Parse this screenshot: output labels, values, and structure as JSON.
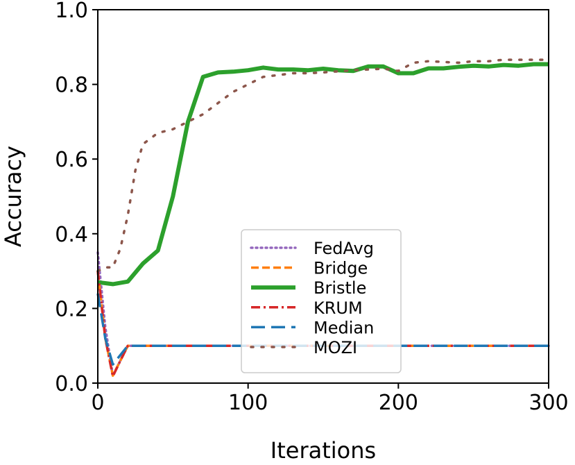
{
  "chart_data": {
    "type": "line",
    "xlabel": "Iterations",
    "ylabel": "Accuracy",
    "xlim": [
      0,
      300
    ],
    "ylim": [
      0.0,
      1.0
    ],
    "xticks": [
      0,
      100,
      200,
      300
    ],
    "xtick_labels": [
      "0",
      "100",
      "200",
      "300"
    ],
    "yticks": [
      0.0,
      0.2,
      0.4,
      0.6,
      0.8,
      1.0
    ],
    "ytick_labels": [
      "0.0",
      "0.2",
      "0.4",
      "0.6",
      "0.8",
      "1.0"
    ],
    "grid": false,
    "legend_position": "center-bottom",
    "series": [
      {
        "name": "FedAvg",
        "color": "#9467bd",
        "style": "dotted",
        "x": [
          0,
          5,
          10,
          15,
          20,
          30,
          50,
          100,
          150,
          200,
          250,
          300
        ],
        "y": [
          0.35,
          0.15,
          0.02,
          0.06,
          0.1,
          0.1,
          0.1,
          0.1,
          0.1,
          0.1,
          0.1,
          0.1
        ]
      },
      {
        "name": "Bridge",
        "color": "#ff7f0e",
        "style": "dashed",
        "x": [
          0,
          5,
          10,
          15,
          20,
          30,
          50,
          100,
          150,
          200,
          250,
          300
        ],
        "y": [
          0.3,
          0.12,
          0.02,
          0.06,
          0.1,
          0.1,
          0.1,
          0.1,
          0.1,
          0.1,
          0.1,
          0.1
        ]
      },
      {
        "name": "Bristle",
        "color": "#2ca02c",
        "style": "solid-thick",
        "x": [
          0,
          10,
          20,
          30,
          40,
          50,
          60,
          70,
          80,
          90,
          100,
          110,
          120,
          130,
          140,
          150,
          160,
          170,
          180,
          190,
          200,
          210,
          220,
          230,
          240,
          250,
          260,
          270,
          280,
          290,
          300
        ],
        "y": [
          0.27,
          0.265,
          0.272,
          0.32,
          0.355,
          0.5,
          0.7,
          0.82,
          0.832,
          0.834,
          0.838,
          0.845,
          0.84,
          0.84,
          0.838,
          0.842,
          0.838,
          0.836,
          0.848,
          0.848,
          0.83,
          0.83,
          0.843,
          0.843,
          0.847,
          0.85,
          0.848,
          0.852,
          0.85,
          0.854,
          0.854
        ]
      },
      {
        "name": "KRUM",
        "color": "#d62728",
        "style": "dashdot",
        "x": [
          0,
          5,
          10,
          15,
          20,
          30,
          50,
          100,
          150,
          200,
          250,
          300
        ],
        "y": [
          0.3,
          0.12,
          0.018,
          0.06,
          0.1,
          0.1,
          0.1,
          0.1,
          0.1,
          0.1,
          0.1,
          0.1
        ]
      },
      {
        "name": "Median",
        "color": "#1f77b4",
        "style": "longdash",
        "x": [
          0,
          5,
          10,
          15,
          20,
          30,
          50,
          100,
          150,
          200,
          250,
          300
        ],
        "y": [
          0.24,
          0.12,
          0.05,
          0.075,
          0.1,
          0.1,
          0.1,
          0.1,
          0.1,
          0.1,
          0.1,
          0.1
        ]
      },
      {
        "name": "MOZI",
        "color": "#8c564b",
        "style": "sparse-dotted",
        "x": [
          0,
          5,
          10,
          15,
          20,
          25,
          30,
          40,
          50,
          60,
          70,
          80,
          90,
          100,
          110,
          120,
          130,
          140,
          150,
          160,
          170,
          180,
          190,
          200,
          210,
          220,
          230,
          240,
          250,
          260,
          270,
          280,
          290,
          300
        ],
        "y": [
          0.3,
          0.31,
          0.31,
          0.36,
          0.45,
          0.57,
          0.64,
          0.67,
          0.68,
          0.7,
          0.72,
          0.75,
          0.78,
          0.8,
          0.82,
          0.825,
          0.83,
          0.83,
          0.832,
          0.835,
          0.838,
          0.84,
          0.842,
          0.836,
          0.858,
          0.862,
          0.86,
          0.858,
          0.862,
          0.862,
          0.866,
          0.866,
          0.866,
          0.866
        ]
      }
    ]
  }
}
